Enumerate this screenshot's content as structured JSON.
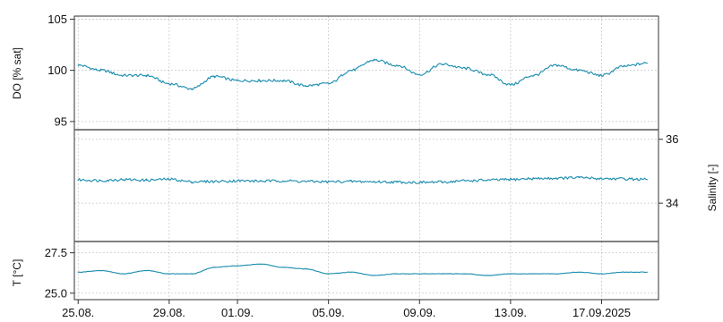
{
  "chart_data": [
    {
      "type": "line",
      "ylabel": "DO [% sat]",
      "yaxis_side": "left",
      "ylim": [
        94.2,
        105.3
      ],
      "yticks": [
        95,
        100,
        105
      ],
      "ytick_labels": [
        "95",
        "100",
        "105"
      ],
      "series": [
        {
          "color": "#1f8fb0",
          "x": [
            "2025-08-25",
            "2025-08-26",
            "2025-08-27",
            "2025-08-28",
            "2025-08-29",
            "2025-08-30",
            "2025-08-31",
            "2025-09-01",
            "2025-09-02",
            "2025-09-03",
            "2025-09-04",
            "2025-09-05",
            "2025-09-06",
            "2025-09-07",
            "2025-09-08",
            "2025-09-09",
            "2025-09-10",
            "2025-09-11",
            "2025-09-12",
            "2025-09-13",
            "2025-09-14",
            "2025-09-15",
            "2025-09-16",
            "2025-09-17",
            "2025-09-18",
            "2025-09-19"
          ],
          "y": [
            100.5,
            100.0,
            99.5,
            99.5,
            98.7,
            98.2,
            99.4,
            99.0,
            99.0,
            99.0,
            98.5,
            98.7,
            100.0,
            101.0,
            100.5,
            99.6,
            100.6,
            100.2,
            99.6,
            98.6,
            99.5,
            100.5,
            100.0,
            99.5,
            100.4,
            100.7
          ]
        }
      ]
    },
    {
      "type": "line",
      "ylabel": "Salinity [-]",
      "yaxis_side": "right",
      "ylim": [
        32.8,
        36.3
      ],
      "yticks": [
        34,
        36
      ],
      "ytick_labels": [
        "34",
        "36"
      ],
      "series": [
        {
          "color": "#1f8fb0",
          "x": [
            "2025-08-25",
            "2025-08-26",
            "2025-08-27",
            "2025-08-28",
            "2025-08-29",
            "2025-08-30",
            "2025-08-31",
            "2025-09-01",
            "2025-09-02",
            "2025-09-03",
            "2025-09-04",
            "2025-09-05",
            "2025-09-06",
            "2025-09-07",
            "2025-09-08",
            "2025-09-09",
            "2025-09-10",
            "2025-09-11",
            "2025-09-12",
            "2025-09-13",
            "2025-09-14",
            "2025-09-15",
            "2025-09-16",
            "2025-09-17",
            "2025-09-18",
            "2025-09-19"
          ],
          "y": [
            34.73,
            34.71,
            34.74,
            34.72,
            34.75,
            34.67,
            34.68,
            34.7,
            34.69,
            34.7,
            34.68,
            34.67,
            34.68,
            34.67,
            34.66,
            34.65,
            34.66,
            34.7,
            34.72,
            34.74,
            34.77,
            34.78,
            34.8,
            34.77,
            34.76,
            34.74
          ]
        }
      ]
    },
    {
      "type": "line",
      "ylabel": "T [°C]",
      "yaxis_side": "left",
      "ylim": [
        24.6,
        28.2
      ],
      "yticks": [
        25.0,
        27.5
      ],
      "ytick_labels": [
        "25.0",
        "27.5"
      ],
      "series": [
        {
          "color": "#1f8fb0",
          "x": [
            "2025-08-25",
            "2025-08-26",
            "2025-08-27",
            "2025-08-28",
            "2025-08-29",
            "2025-08-30",
            "2025-08-31",
            "2025-09-01",
            "2025-09-02",
            "2025-09-03",
            "2025-09-04",
            "2025-09-05",
            "2025-09-06",
            "2025-09-07",
            "2025-09-08",
            "2025-09-09",
            "2025-09-10",
            "2025-09-11",
            "2025-09-12",
            "2025-09-13",
            "2025-09-14",
            "2025-09-15",
            "2025-09-16",
            "2025-09-17",
            "2025-09-18",
            "2025-09-19"
          ],
          "y": [
            26.3,
            26.4,
            26.2,
            26.4,
            26.2,
            26.2,
            26.6,
            26.7,
            26.8,
            26.6,
            26.5,
            26.2,
            26.3,
            26.1,
            26.2,
            26.2,
            26.2,
            26.2,
            26.1,
            26.2,
            26.2,
            26.2,
            26.3,
            26.2,
            26.3,
            26.3
          ]
        }
      ]
    }
  ],
  "x_axis": {
    "range": [
      "2025-08-24T20:00",
      "2025-09-19T12:00"
    ],
    "ticks": [
      "2025-08-25",
      "2025-08-29",
      "2025-09-01",
      "2025-09-05",
      "2025-09-09",
      "2025-09-13",
      "2025-09-17"
    ],
    "tick_labels": [
      "25.08.",
      "29.08.",
      "01.09.",
      "05.09.",
      "09.09.",
      "13.09.",
      "17.09.2025"
    ]
  },
  "grid": true
}
